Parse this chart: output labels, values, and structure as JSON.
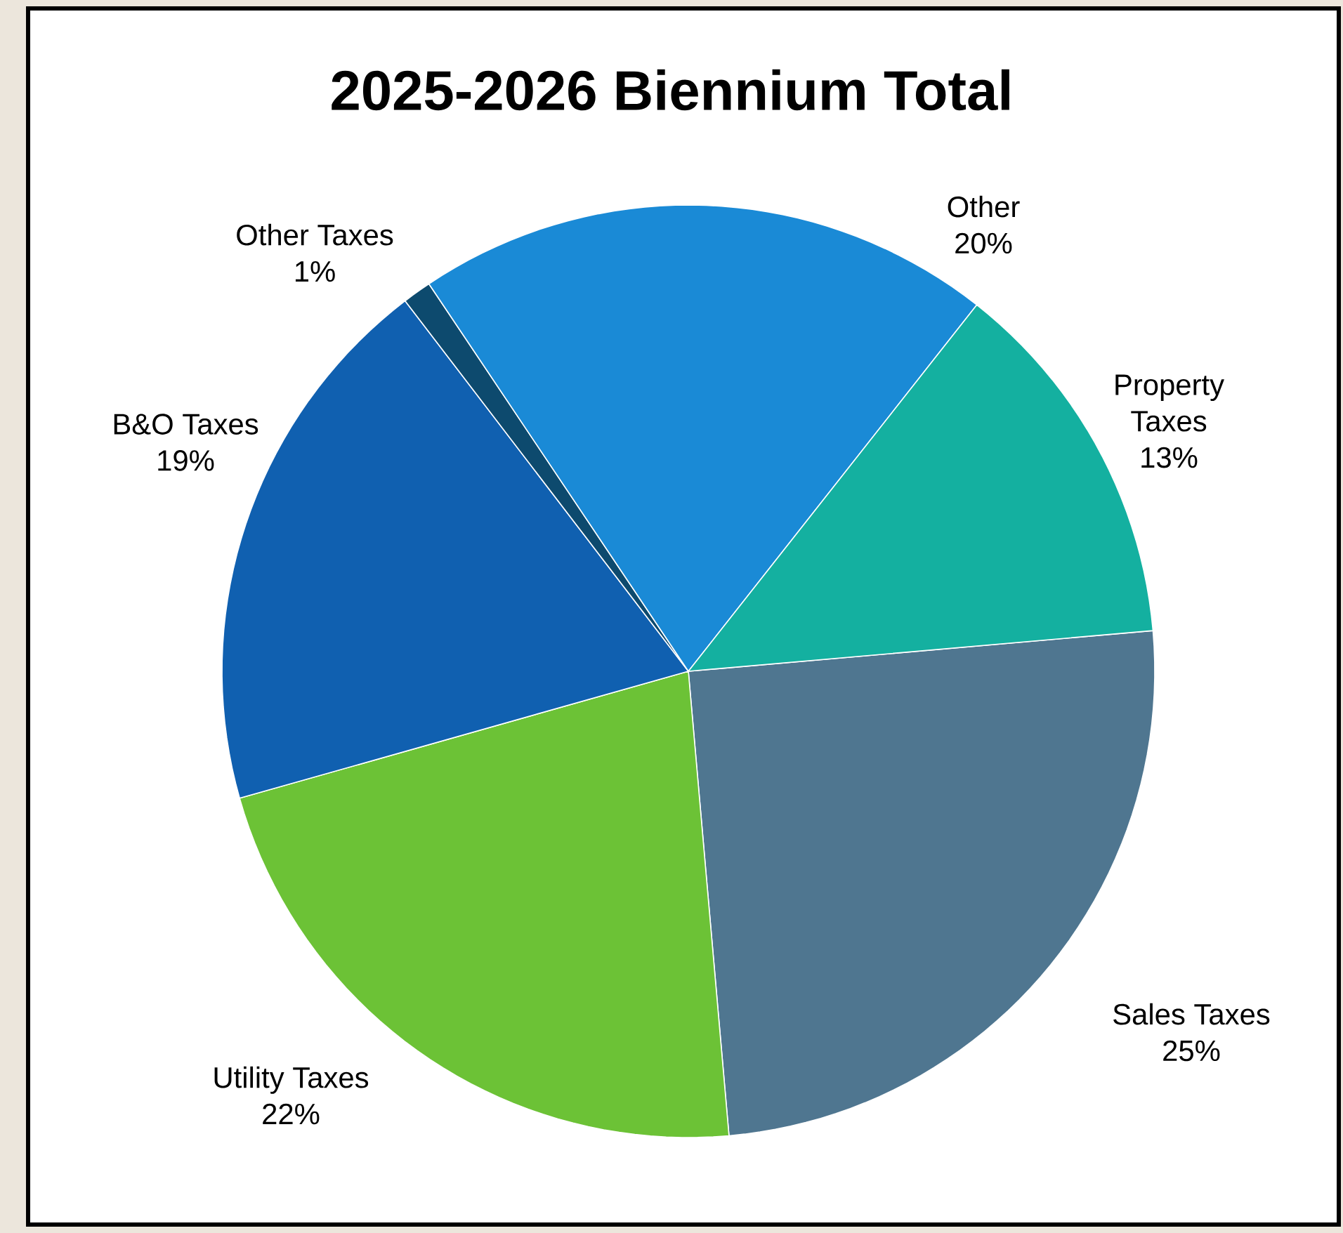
{
  "chart_data": {
    "type": "pie",
    "title": "2025-2026 Biennium Total",
    "categories": [
      "Sales Taxes",
      "Utility Taxes",
      "B&O Taxes",
      "Other Taxes",
      "Other",
      "Property Taxes"
    ],
    "values": [
      25,
      22,
      19,
      1,
      20,
      13
    ],
    "value_labels": [
      "25%",
      "22%",
      "19%",
      "1%",
      "20%",
      "13%"
    ],
    "colors": [
      "#4f7690",
      "#6cc236",
      "#1060b0",
      "#0d4a6e",
      "#1a8ad6",
      "#14b0a0"
    ]
  }
}
